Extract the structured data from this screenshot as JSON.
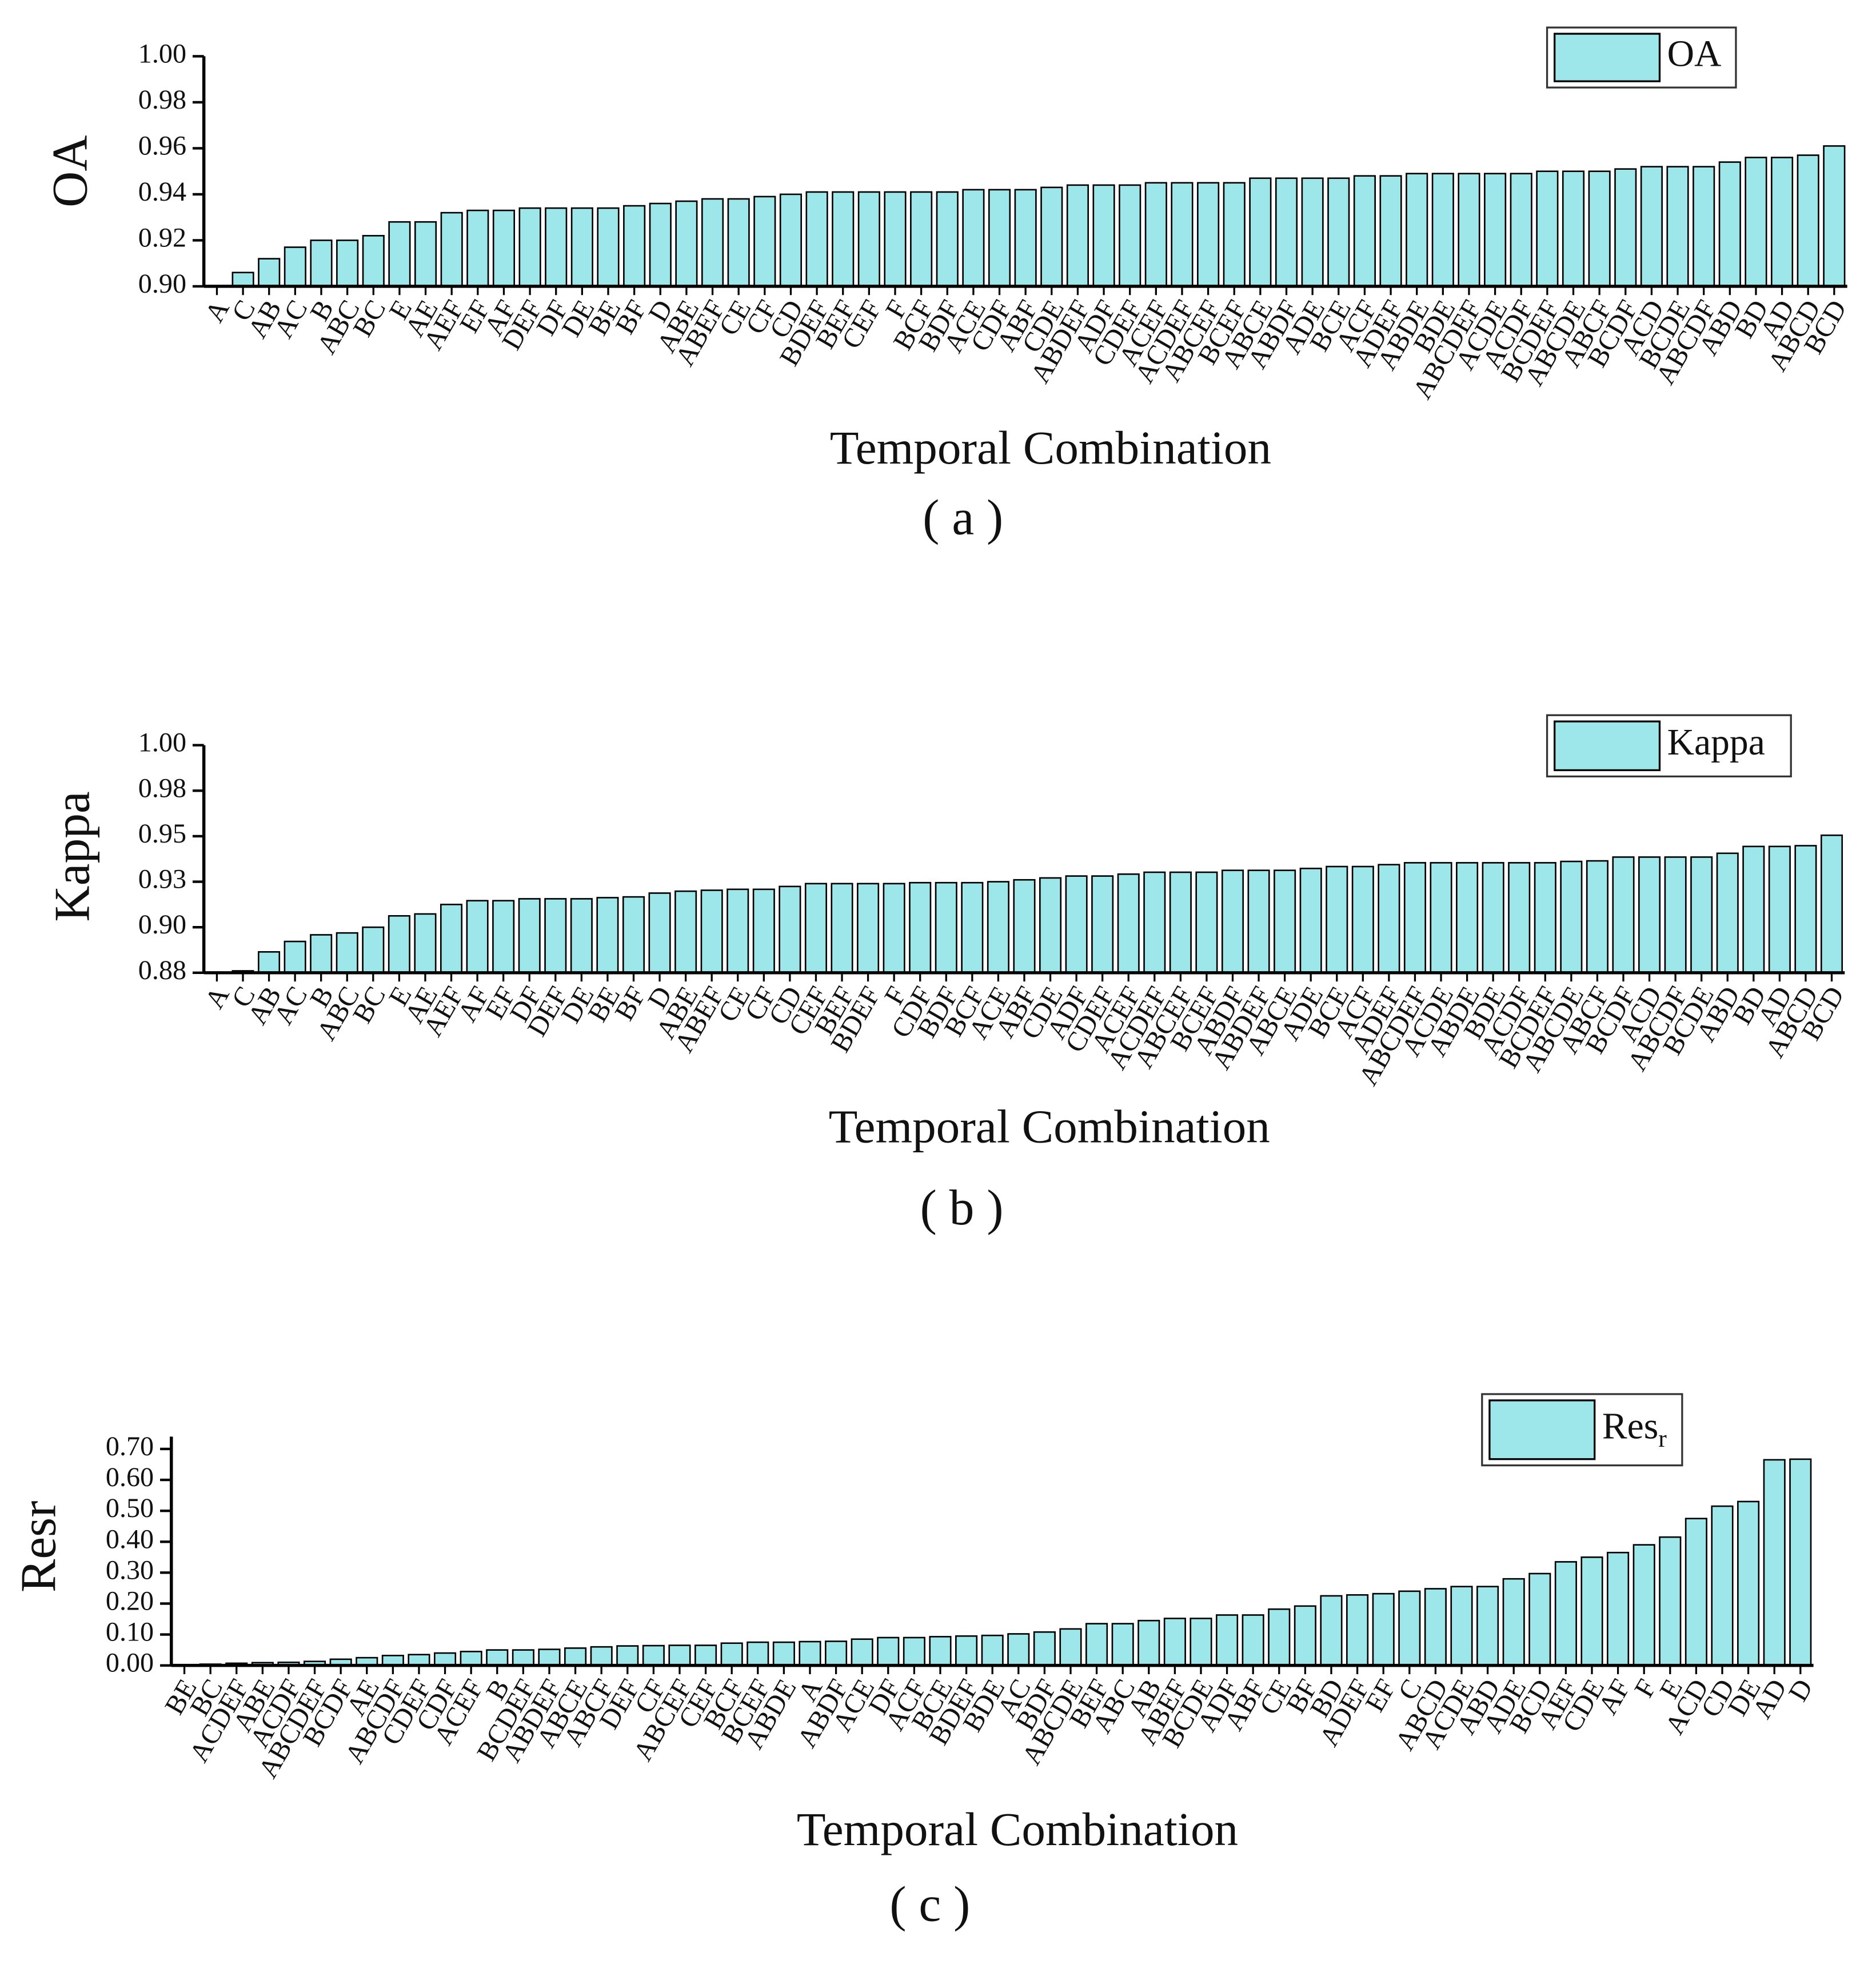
{
  "chart_data": [
    {
      "type": "bar",
      "y_label": "OA",
      "x_label": "Temporal Combination",
      "panel_label": "( a )",
      "legend": "upper right",
      "categories": [
        "A",
        "C",
        "AB",
        "AC",
        "B",
        "ABC",
        "BC",
        "E",
        "AE",
        "AEF",
        "EF",
        "AF",
        "DEF",
        "DF",
        "DE",
        "BE",
        "BF",
        "D",
        "ABE",
        "ABEF",
        "CE",
        "CF",
        "CD",
        "BDEF",
        "BEF",
        "CEF",
        "F",
        "BCF",
        "BDF",
        "ACE",
        "CDF",
        "ABF",
        "CDE",
        "ABDEF",
        "ADF",
        "CDEF",
        "ACEF",
        "ACDEF",
        "ABCEF",
        "BCEF",
        "ABCE",
        "ABDF",
        "ADE",
        "BCE",
        "ACF",
        "ADEF",
        "ABDE",
        "BDE",
        "ABCDEF",
        "ACDE",
        "ACDF",
        "BCDEF",
        "ABCDE",
        "ABCF",
        "BCDF",
        "ACD",
        "BCDE",
        "ABCDF",
        "ABD",
        "BD",
        "AD",
        "ABCD",
        "BCD"
      ],
      "series": [
        {
          "name": "OA",
          "color": "#9de6ea",
          "values": [
            0.9,
            0.906,
            0.912,
            0.917,
            0.92,
            0.92,
            0.922,
            0.928,
            0.928,
            0.932,
            0.933,
            0.933,
            0.934,
            0.934,
            0.934,
            0.934,
            0.935,
            0.936,
            0.937,
            0.938,
            0.938,
            0.939,
            0.94,
            0.941,
            0.941,
            0.941,
            0.941,
            0.941,
            0.941,
            0.942,
            0.942,
            0.942,
            0.943,
            0.944,
            0.944,
            0.944,
            0.945,
            0.945,
            0.945,
            0.945,
            0.947,
            0.947,
            0.947,
            0.947,
            0.948,
            0.948,
            0.949,
            0.949,
            0.949,
            0.949,
            0.949,
            0.95,
            0.95,
            0.95,
            0.951,
            0.952,
            0.952,
            0.952,
            0.954,
            0.956,
            0.956,
            0.957,
            0.961
          ]
        }
      ],
      "ylim": [
        0.9,
        1.0
      ],
      "yticks": [
        {
          "value": 0.9,
          "label": "0.90"
        },
        {
          "value": 0.92,
          "label": "0.92"
        },
        {
          "value": 0.94,
          "label": "0.94"
        },
        {
          "value": 0.96,
          "label": "0.96"
        },
        {
          "value": 0.98,
          "label": "0.98"
        },
        {
          "value": 1.0,
          "label": "1.00"
        }
      ]
    },
    {
      "type": "bar",
      "y_label": "Kappa",
      "x_label": "Temporal Combination",
      "panel_label": "( b )",
      "legend": "upper right",
      "categories": [
        "A",
        "C",
        "AB",
        "AC",
        "B",
        "ABC",
        "BC",
        "E",
        "AE",
        "AEF",
        "AF",
        "EF",
        "DF",
        "DEF",
        "DE",
        "BE",
        "BF",
        "D",
        "ABE",
        "ABEF",
        "CE",
        "CF",
        "CD",
        "CEF",
        "BEF",
        "BDEF",
        "F",
        "CDF",
        "BDF",
        "BCF",
        "ACE",
        "ABF",
        "CDE",
        "ADF",
        "CDEF",
        "ACEF",
        "ACDEF",
        "ABCEF",
        "BCEF",
        "ABDF",
        "ABDEF",
        "ABCE",
        "ADE",
        "BCE",
        "ACF",
        "ADEF",
        "ABCDEF",
        "ACDE",
        "ABDE",
        "BDE",
        "ACDF",
        "BCDEF",
        "ABCDE",
        "ABCF",
        "BCDF",
        "ACD",
        "ABCDF",
        "BCDE",
        "ABD",
        "BD",
        "AD",
        "ABCD",
        "BCD"
      ],
      "series": [
        {
          "name": "Kappa",
          "color": "#9de6ea",
          "values": [
            0.88,
            0.881,
            0.891,
            0.8965,
            0.9,
            0.901,
            0.904,
            0.91,
            0.911,
            0.916,
            0.918,
            0.918,
            0.919,
            0.919,
            0.919,
            0.9196,
            0.92,
            0.922,
            0.923,
            0.9235,
            0.924,
            0.924,
            0.9255,
            0.927,
            0.927,
            0.927,
            0.927,
            0.9275,
            0.9275,
            0.9275,
            0.928,
            0.929,
            0.93,
            0.931,
            0.931,
            0.932,
            0.933,
            0.933,
            0.933,
            0.934,
            0.934,
            0.934,
            0.935,
            0.936,
            0.936,
            0.937,
            0.938,
            0.938,
            0.938,
            0.938,
            0.938,
            0.938,
            0.9387,
            0.939,
            0.941,
            0.941,
            0.941,
            0.941,
            0.943,
            0.9466,
            0.9466,
            0.947,
            0.9525
          ]
        }
      ],
      "ylim": [
        0.88,
        1.0
      ],
      "yticks": [
        {
          "value": 0.88,
          "label": "0.88"
        },
        {
          "value": 0.904,
          "label": "0.90"
        },
        {
          "value": 0.928,
          "label": "0.93"
        },
        {
          "value": 0.952,
          "label": "0.95"
        },
        {
          "value": 0.976,
          "label": "0.98"
        },
        {
          "value": 1.0,
          "label": "1.00"
        }
      ]
    },
    {
      "type": "bar",
      "y_label": "Resr",
      "x_label": "Temporal Combination",
      "panel_label": "( c )",
      "legend": "upper right",
      "categories": [
        "BE",
        "BC",
        "ACDEF",
        "ABE",
        "ACDF",
        "ABCDEF",
        "BCDF",
        "AE",
        "ABCDF",
        "CDEF",
        "CDF",
        "ACEF",
        "B",
        "BCDEF",
        "ABDEF",
        "ABCE",
        "ABCF",
        "DEF",
        "CF",
        "ABCEF",
        "CEF",
        "BCF",
        "BCEF",
        "ABDE",
        "A",
        "ABDF",
        "ACE",
        "DF",
        "ACF",
        "BCE",
        "BDEF",
        "BDE",
        "AC",
        "BDF",
        "ABCDE",
        "BEF",
        "ABC",
        "AB",
        "ABEF",
        "BCDE",
        "ADF",
        "ABF",
        "CE",
        "BF",
        "BD",
        "ADEF",
        "EF",
        "C",
        "ABCD",
        "ACDE",
        "ABD",
        "ADE",
        "BCD",
        "AEF",
        "CDE",
        "AF",
        "F",
        "E",
        "ACD",
        "CD",
        "DE",
        "AD",
        "D"
      ],
      "series": [
        {
          "name": "Res",
          "name_subscript": "r",
          "color": "#9de6ea",
          "values": [
            0.002,
            0.004,
            0.007,
            0.009,
            0.01,
            0.013,
            0.02,
            0.025,
            0.032,
            0.035,
            0.04,
            0.045,
            0.05,
            0.05,
            0.052,
            0.056,
            0.06,
            0.063,
            0.064,
            0.065,
            0.065,
            0.072,
            0.075,
            0.075,
            0.077,
            0.078,
            0.085,
            0.09,
            0.09,
            0.093,
            0.095,
            0.097,
            0.102,
            0.108,
            0.118,
            0.135,
            0.135,
            0.145,
            0.152,
            0.152,
            0.163,
            0.163,
            0.182,
            0.192,
            0.225,
            0.228,
            0.232,
            0.24,
            0.248,
            0.255,
            0.255,
            0.28,
            0.297,
            0.335,
            0.35,
            0.365,
            0.39,
            0.415,
            0.475,
            0.515,
            0.53,
            0.665,
            0.667
          ]
        }
      ],
      "ylim": [
        0,
        0.74
      ],
      "yticks": [
        {
          "value": 0,
          "label": "0.00"
        },
        {
          "value": 0.1,
          "label": "0.10"
        },
        {
          "value": 0.2,
          "label": "0.20"
        },
        {
          "value": 0.3,
          "label": "0.30"
        },
        {
          "value": 0.4,
          "label": "0.40"
        },
        {
          "value": 0.5,
          "label": "0.50"
        },
        {
          "value": 0.6,
          "label": "0.60"
        },
        {
          "value": 0.7,
          "label": "0.70"
        }
      ]
    }
  ]
}
